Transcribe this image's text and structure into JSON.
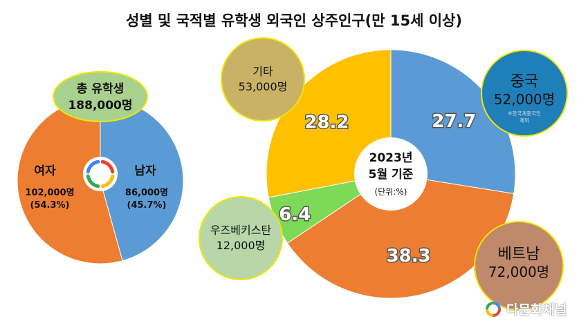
{
  "title": "성별 및 국적별 유학생 외국인 상주인구(만 15세 이상)",
  "chart_data": [
    {
      "type": "pie",
      "center_label": {
        "line1": "총 유학생",
        "line2": "188,000명"
      },
      "slices": [
        {
          "name": "남자",
          "value": 45.7,
          "count_label": "86,000명",
          "pct_label": "(45.7%)",
          "color": "#5B9BD5"
        },
        {
          "name": "여자",
          "value": 54.3,
          "count_label": "102,000명",
          "pct_label": "(54.3%)",
          "color": "#ED7D31"
        }
      ]
    },
    {
      "type": "pie",
      "center_label": {
        "line1": "2023년",
        "line2": "5월 기준",
        "unit": "(단위:%)"
      },
      "slices": [
        {
          "name": "중국",
          "value": 27.7,
          "label": "27.7",
          "count_label": "52,000명",
          "note": "※한국계중국인 제외",
          "color": "#5B9BD5",
          "bubble_color": "#1F7FB8"
        },
        {
          "name": "베트남",
          "value": 38.3,
          "label": "38.3",
          "count_label": "72,000명",
          "color": "#ED7D31",
          "bubble_color": "#C0896B"
        },
        {
          "name": "우즈베키스탄",
          "value": 6.4,
          "label": "6.4",
          "count_label": "12,000명",
          "color": "#7ED957",
          "bubble_color": "#B7D7A8"
        },
        {
          "name": "기타",
          "value": 28.2,
          "label": "28.2",
          "count_label": "53,000명",
          "color": "#FFC000",
          "bubble_color": "#C9B266"
        }
      ]
    }
  ],
  "brand": {
    "name": "다문화채널"
  }
}
